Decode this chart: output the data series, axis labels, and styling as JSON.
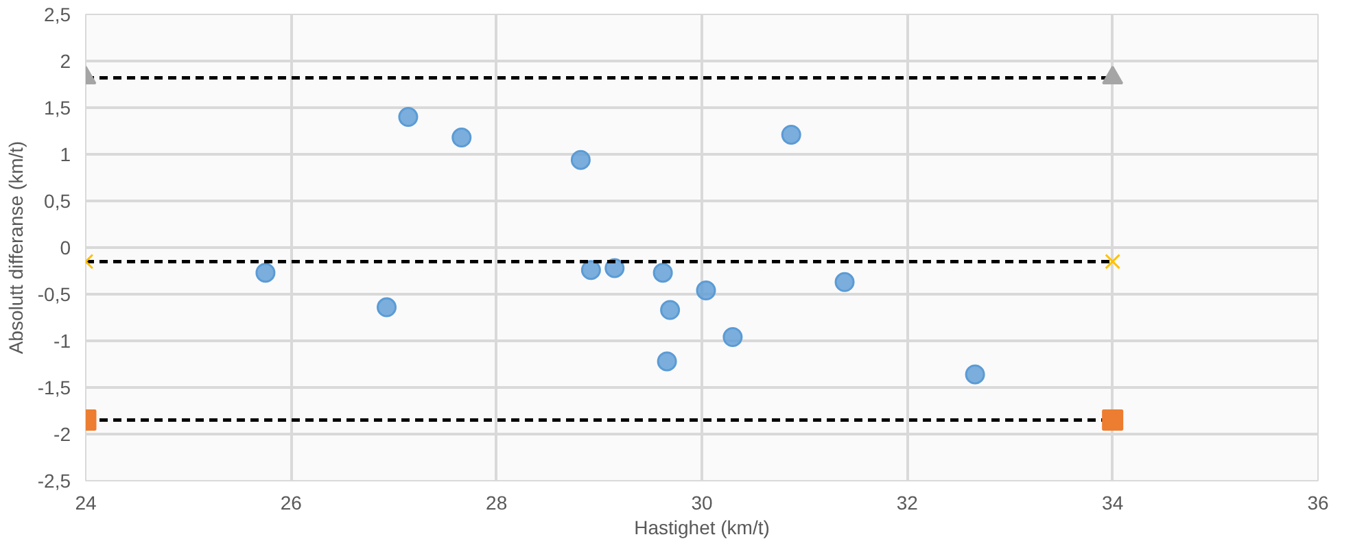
{
  "chart_data": {
    "type": "scatter",
    "xlabel": "Hastighet (km/t)",
    "ylabel": "Absolutt differanse (km/t)",
    "xlim": [
      24,
      36
    ],
    "xticks": [
      24,
      26,
      28,
      30,
      32,
      34,
      36
    ],
    "ylim": [
      -2.5,
      2.5
    ],
    "yticks": [
      {
        "value": -2.5,
        "label": "-2,5"
      },
      {
        "value": -2,
        "label": "-2"
      },
      {
        "value": -1.5,
        "label": "-1,5"
      },
      {
        "value": -1,
        "label": "-1"
      },
      {
        "value": -0.5,
        "label": "-0,5"
      },
      {
        "value": 0,
        "label": "0"
      },
      {
        "value": 0.5,
        "label": "0,5"
      },
      {
        "value": 1,
        "label": "1"
      },
      {
        "value": 1.5,
        "label": "1,5"
      },
      {
        "value": 2,
        "label": "2"
      },
      {
        "value": 2.5,
        "label": "2,5"
      }
    ],
    "grid": true,
    "marker": "circle",
    "series": [
      {
        "color": "#5b9bd5",
        "x": [
          25.75,
          27.14,
          27.66,
          26.93,
          28.82,
          28.92,
          29.15,
          29.62,
          29.69,
          29.66,
          30.04,
          30.3,
          30.87,
          31.39,
          32.66
        ],
        "values": [
          -0.27,
          1.4,
          1.18,
          -0.64,
          0.94,
          -0.24,
          -0.22,
          -0.27,
          -0.67,
          -1.22,
          -0.46,
          -0.96,
          1.21,
          -0.37,
          -1.36
        ]
      },
      {
        "type": "line",
        "color": "#a5a5a5",
        "marker": "triangle",
        "line_style": "dashed",
        "x": [
          24,
          34
        ],
        "values": [
          1.82,
          1.82
        ]
      },
      {
        "type": "line",
        "color": "#ffc000",
        "marker": "cross",
        "line_style": "dashed",
        "x": [
          24,
          34
        ],
        "values": [
          -0.15,
          -0.15
        ]
      },
      {
        "type": "line",
        "color": "#ed7d31",
        "marker": "square",
        "line_style": "dashed",
        "x": [
          24,
          34
        ],
        "values": [
          -1.85,
          -1.85
        ]
      }
    ]
  }
}
